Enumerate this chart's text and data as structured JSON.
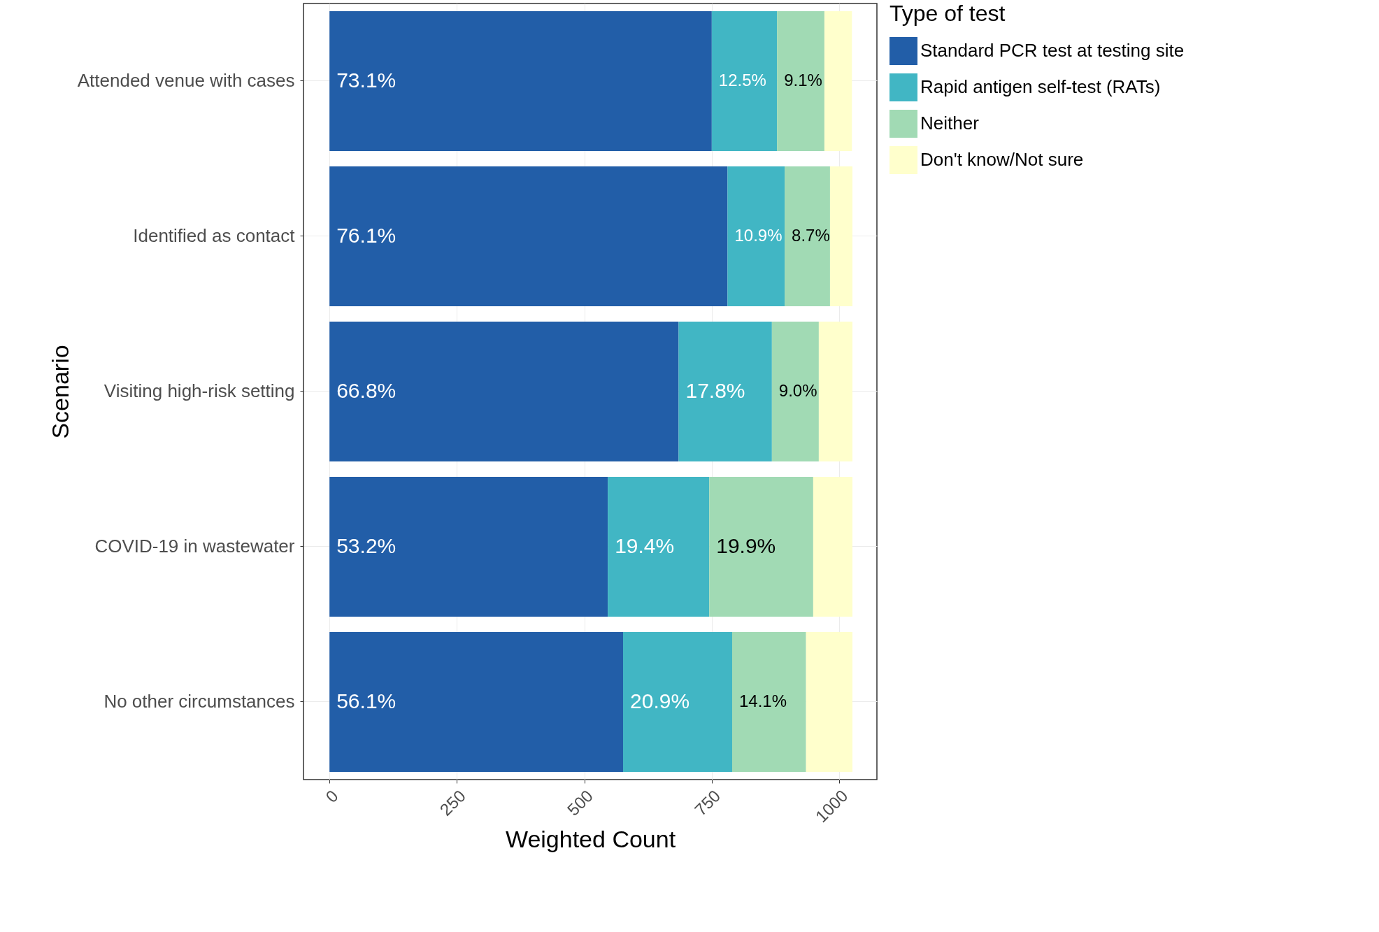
{
  "chart_data": {
    "type": "bar",
    "orientation": "horizontal",
    "stacked": true,
    "categories": [
      "Attended venue with cases",
      "Identified as contact",
      "Visiting high-risk setting",
      "COVID-19 in wastewater",
      "No other circumstances"
    ],
    "series": [
      {
        "name": "Standard PCR test at testing site",
        "color": "#225ea8",
        "values": [
          750,
          781,
          685,
          546,
          576
        ]
      },
      {
        "name": "Rapid antigen self-test (RATs)",
        "color": "#41b6c4",
        "values": [
          128,
          112,
          183,
          199,
          214
        ]
      },
      {
        "name": "Neither",
        "color": "#a1dab4",
        "values": [
          93,
          89,
          92,
          204,
          145
        ]
      },
      {
        "name": "Don't know/Not sure",
        "color": "#ffffcc",
        "values": [
          54,
          44,
          66,
          77,
          91
        ]
      }
    ],
    "annotations": [
      {
        "text": "73.1%",
        "x": 0,
        "y": "Attended venue with cases"
      },
      {
        "text": "76.1%",
        "x": 0,
        "y": "Identified as contact"
      },
      {
        "text": "66.8%",
        "x": 0,
        "y": "Visiting high-risk setting"
      },
      {
        "text": "53.2%",
        "x": 0,
        "y": "COVID-19 in wastewater"
      },
      {
        "text": "56.1%",
        "x": 0,
        "y": "No other circumstances"
      },
      {
        "text": "12.5%",
        "x": 750,
        "y": "Attended venue with cases"
      },
      {
        "text": "10.9%",
        "x": 781,
        "y": "Identified as contact"
      },
      {
        "text": "17.8%",
        "x": 685,
        "y": "Visiting high-risk setting"
      },
      {
        "text": "19.4%",
        "x": 546,
        "y": "COVID-19 in wastewater"
      },
      {
        "text": "20.9%",
        "x": 576,
        "y": "No other circumstances"
      },
      {
        "text": "9.1%",
        "x": 878,
        "y": "Attended venue with cases"
      },
      {
        "text": "8.7%",
        "x": 893,
        "y": "Identified as contact"
      },
      {
        "text": "9.0%",
        "x": 868,
        "y": "Visiting high-risk setting"
      },
      {
        "text": "19.9%",
        "x": 745,
        "y": "COVID-19 in wastewater"
      },
      {
        "text": "14.1%",
        "x": 790,
        "y": "No other circumstances"
      }
    ],
    "xlabel": "Weighted Count",
    "ylabel": "Scenario",
    "legend_title": "Type of test",
    "legend": "right",
    "xlim": [
      -51,
      1074
    ],
    "xticks": [
      0,
      250,
      500,
      750,
      1000
    ],
    "grid": true
  }
}
